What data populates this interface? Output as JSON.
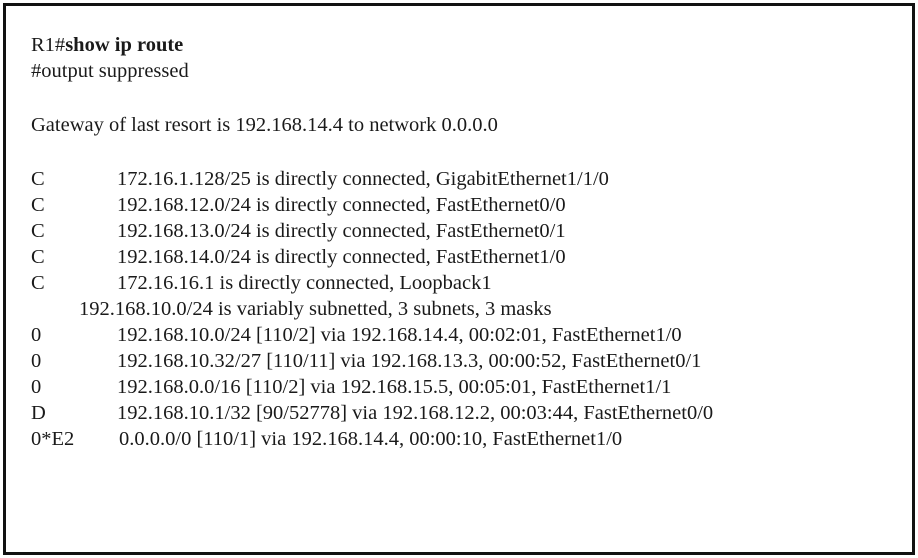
{
  "prompt": {
    "hostname": "R1#",
    "command": "show ip route"
  },
  "suppressed_note": "#output suppressed",
  "gateway_line": "Gateway of last resort is 192.168.14.4 to network 0.0.0.0",
  "connected_routes": [
    {
      "code": "C",
      "desc": "172.16.1.128/25 is directly connected, GigabitEthernet1/1/0"
    },
    {
      "code": "C",
      "desc": "192.168.12.0/24 is directly connected, FastEthernet0/0"
    },
    {
      "code": "C",
      "desc": "192.168.13.0/24 is directly connected, FastEthernet0/1"
    },
    {
      "code": "C",
      "desc": "192.168.14.0/24 is directly connected, FastEthernet1/0"
    },
    {
      "code": "C",
      "desc": "172.16.16.1 is directly connected, Loopback1"
    }
  ],
  "subnet_note": "192.168.10.0/24 is variably subnetted, 3 subnets, 3 masks",
  "learned_routes": [
    {
      "code": "0",
      "desc": "192.168.10.0/24 [110/2] via 192.168.14.4, 00:02:01, FastEthernet1/0"
    },
    {
      "code": "0",
      "desc": "192.168.10.32/27 [110/11] via 192.168.13.3, 00:00:52, FastEthernet0/1"
    },
    {
      "code": "0",
      "desc": "192.168.0.0/16 [110/2] via 192.168.15.5, 00:05:01, FastEthernet1/1"
    },
    {
      "code": "D",
      "desc": "192.168.10.1/32 [90/52778] via 192.168.12.2, 00:03:44, FastEthernet0/0"
    }
  ],
  "default_route": {
    "code": "0*E2",
    "desc": "0.0.0.0/0 [110/1] via 192.168.14.4, 00:00:10, FastEthernet1/0"
  }
}
